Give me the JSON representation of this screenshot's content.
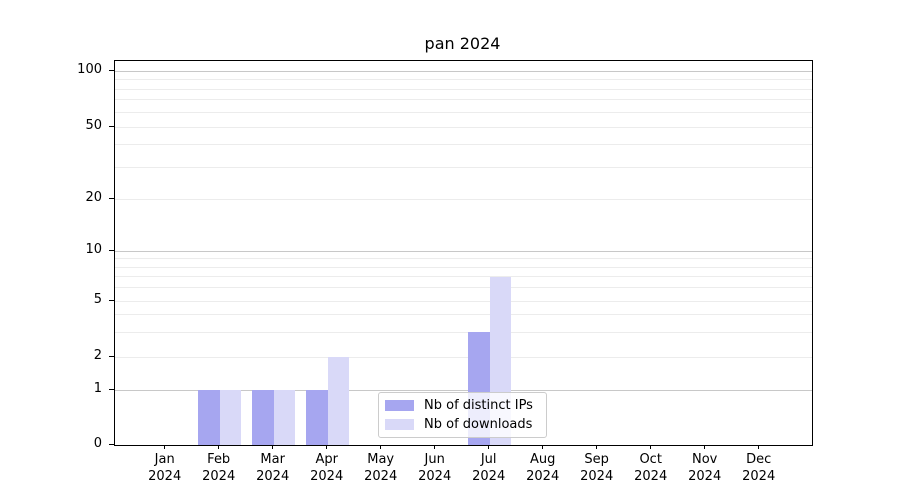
{
  "chart_data": {
    "type": "bar",
    "title": "pan 2024",
    "categories": [
      "Jan",
      "Feb",
      "Mar",
      "Apr",
      "May",
      "Jun",
      "Jul",
      "Aug",
      "Sep",
      "Oct",
      "Nov",
      "Dec"
    ],
    "category_year": "2024",
    "series": [
      {
        "name": "Nb of distinct IPs",
        "color": "#a6a6f0",
        "values": [
          0,
          1,
          1,
          1,
          0,
          0,
          3,
          0,
          0,
          0,
          0,
          0
        ]
      },
      {
        "name": "Nb of downloads",
        "color": "#d9d9f8",
        "values": [
          0,
          1,
          1,
          2,
          0,
          0,
          7,
          0,
          0,
          0,
          0,
          0
        ]
      }
    ],
    "yticks": [
      0,
      1,
      2,
      5,
      10,
      20,
      50,
      100
    ],
    "ylim": [
      0,
      113
    ],
    "yscale": "log-like with 0 at axis base",
    "grid": "horizontal major and minor gridlines",
    "legend_position": "lower center",
    "xlabel": "",
    "ylabel": ""
  },
  "colors": {
    "major_grid": "#c8c8c8",
    "minor_grid": "#ececec",
    "axis": "#000000",
    "legend_border": "#cccccc"
  }
}
